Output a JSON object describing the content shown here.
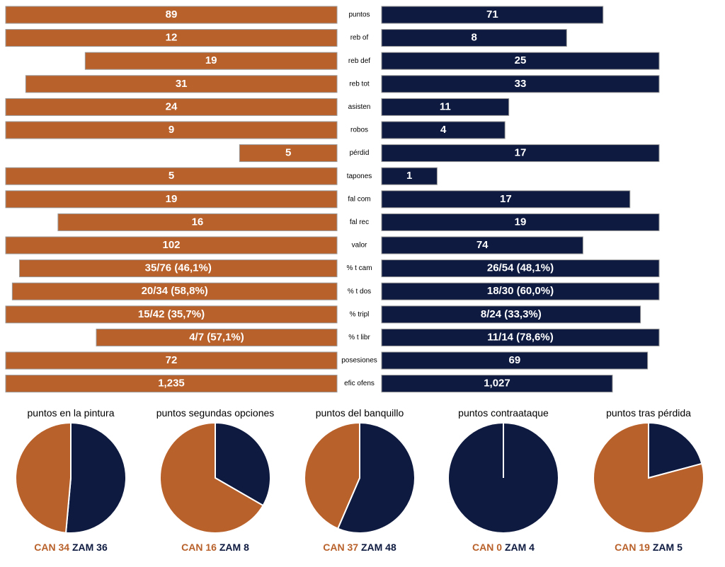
{
  "colors": {
    "can": "#B9612B",
    "zam": "#0E1A40"
  },
  "chart_data": [
    {
      "type": "bar",
      "categories": [
        "puntos",
        "reb of",
        "reb def",
        "reb tot",
        "asisten",
        "robos",
        "pérdid",
        "tapones",
        "fal com",
        "fal rec",
        "valor",
        "% t cam",
        "% t dos",
        "% tripl",
        "% t libr",
        "posesiones",
        "efic ofens"
      ],
      "series": [
        {
          "name": "CAN",
          "values": [
            89,
            12,
            19,
            31,
            24,
            9,
            5,
            5,
            19,
            16,
            102,
            46.1,
            58.8,
            35.7,
            57.1,
            72,
            1.235
          ],
          "labels": [
            "89",
            "12",
            "19",
            "31",
            "24",
            "9",
            "5",
            "5",
            "19",
            "16",
            "102",
            "35/76 (46,1%)",
            "20/34 (58,8%)",
            "15/42 (35,7%)",
            "4/7 (57,1%)",
            "72",
            "1,235"
          ]
        },
        {
          "name": "ZAM",
          "values": [
            71,
            8,
            25,
            33,
            11,
            4,
            17,
            1,
            17,
            19,
            74,
            48.1,
            60.0,
            33.3,
            78.6,
            69,
            1.027
          ],
          "labels": [
            "71",
            "8",
            "25",
            "33",
            "11",
            "4",
            "17",
            "1",
            "17",
            "19",
            "74",
            "26/54 (48,1%)",
            "18/30 (60,0%)",
            "8/24 (33,3%)",
            "11/14 (78,6%)",
            "69",
            "1,027"
          ]
        }
      ],
      "legend": "none"
    },
    {
      "type": "pie",
      "title": "puntos en la pintura",
      "series": [
        {
          "name": "CAN",
          "value": 34
        },
        {
          "name": "ZAM",
          "value": 36
        }
      ]
    },
    {
      "type": "pie",
      "title": "puntos segundas opciones",
      "series": [
        {
          "name": "CAN",
          "value": 16
        },
        {
          "name": "ZAM",
          "value": 8
        }
      ]
    },
    {
      "type": "pie",
      "title": "puntos del banquillo",
      "series": [
        {
          "name": "CAN",
          "value": 37
        },
        {
          "name": "ZAM",
          "value": 48
        }
      ]
    },
    {
      "type": "pie",
      "title": "puntos contraataque",
      "series": [
        {
          "name": "CAN",
          "value": 0
        },
        {
          "name": "ZAM",
          "value": 4
        }
      ]
    },
    {
      "type": "pie",
      "title": "puntos tras pérdida",
      "series": [
        {
          "name": "CAN",
          "value": 19
        },
        {
          "name": "ZAM",
          "value": 5
        }
      ]
    }
  ]
}
